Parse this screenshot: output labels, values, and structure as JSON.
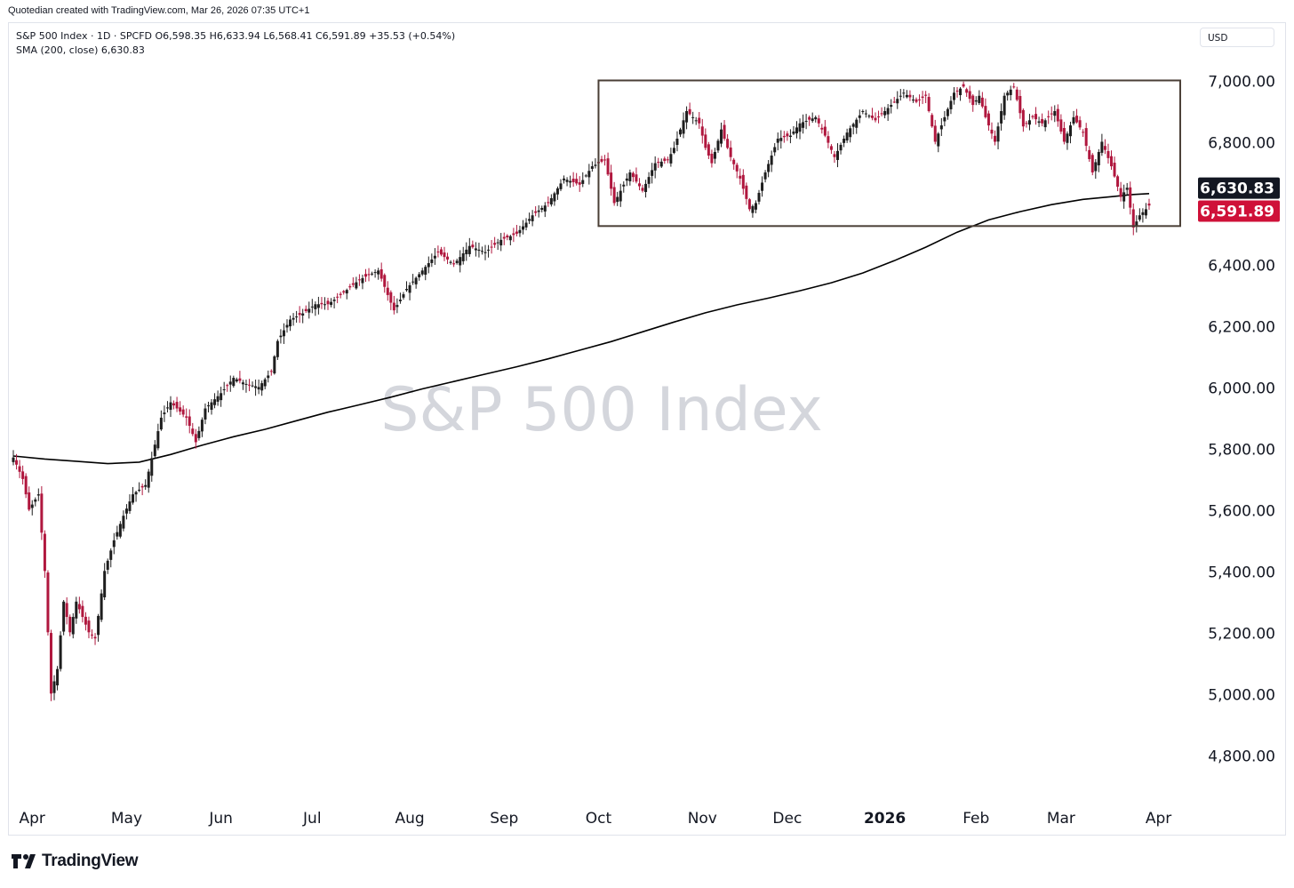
{
  "header": {
    "attribution": "Quotedian created with TradingView.com, Mar 26, 2026 07:35 UTC+1"
  },
  "legend": {
    "symbol_line": "S&P 500 Index · 1D · SPCFD  O6,598.35  H6,633.94  L6,568.41  C6,591.89  +35.53 (+0.54%)",
    "sma_line": "SMA (200, close)  6,630.83"
  },
  "currency_selector": "USD",
  "watermark": "S&P 500 Index",
  "brand": "TradingView",
  "colors": {
    "up": "#1e1e1e",
    "down": "#b0173e",
    "sma": "#000000",
    "box": "#4a3f36",
    "price_label": "#cf1138",
    "sma_label": "#131722"
  },
  "chart_data": {
    "type": "candlestick",
    "title": "S&P 500 Index",
    "timeframe": "1D",
    "currency": "USD",
    "ylim": [
      4650,
      7100
    ],
    "yticks": [
      4800,
      5000,
      5200,
      5400,
      5600,
      5800,
      6000,
      6200,
      6400,
      6800,
      7000
    ],
    "ytick_labels": [
      "4,800.00",
      "5,000.00",
      "5,200.00",
      "5,400.00",
      "5,600.00",
      "5,800.00",
      "6,000.00",
      "6,200.00",
      "6,400.00",
      "6,800.00",
      "7,000.00"
    ],
    "x_months": [
      {
        "label": "Apr",
        "day": 6
      },
      {
        "label": "May",
        "day": 36
      },
      {
        "label": "Jun",
        "day": 66
      },
      {
        "label": "Jul",
        "day": 95
      },
      {
        "label": "Aug",
        "day": 126
      },
      {
        "label": "Sep",
        "day": 156
      },
      {
        "label": "Oct",
        "day": 186
      },
      {
        "label": "Nov",
        "day": 219
      },
      {
        "label": "Dec",
        "day": 246
      },
      {
        "label": "2026",
        "day": 277
      },
      {
        "label": "Feb",
        "day": 306
      },
      {
        "label": "Mar",
        "day": 333
      },
      {
        "label": "Apr",
        "day": 364
      }
    ],
    "anchors": [
      [
        0,
        5770
      ],
      [
        3,
        5700
      ],
      [
        5,
        5600
      ],
      [
        8,
        5650
      ],
      [
        10,
        5400
      ],
      [
        12,
        5000
      ],
      [
        14,
        5080
      ],
      [
        16,
        5300
      ],
      [
        18,
        5200
      ],
      [
        20,
        5300
      ],
      [
        24,
        5200
      ],
      [
        26,
        5180
      ],
      [
        29,
        5400
      ],
      [
        32,
        5500
      ],
      [
        35,
        5580
      ],
      [
        38,
        5650
      ],
      [
        42,
        5680
      ],
      [
        47,
        5900
      ],
      [
        50,
        5950
      ],
      [
        55,
        5900
      ],
      [
        58,
        5820
      ],
      [
        61,
        5930
      ],
      [
        66,
        5980
      ],
      [
        70,
        6030
      ],
      [
        74,
        6010
      ],
      [
        78,
        6000
      ],
      [
        82,
        6050
      ],
      [
        84,
        6150
      ],
      [
        88,
        6220
      ],
      [
        92,
        6240
      ],
      [
        96,
        6270
      ],
      [
        100,
        6270
      ],
      [
        104,
        6300
      ],
      [
        110,
        6350
      ],
      [
        116,
        6380
      ],
      [
        119,
        6300
      ],
      [
        121,
        6250
      ],
      [
        125,
        6320
      ],
      [
        130,
        6380
      ],
      [
        135,
        6440
      ],
      [
        140,
        6400
      ],
      [
        145,
        6460
      ],
      [
        150,
        6440
      ],
      [
        155,
        6480
      ],
      [
        160,
        6500
      ],
      [
        165,
        6560
      ],
      [
        170,
        6600
      ],
      [
        175,
        6680
      ],
      [
        180,
        6660
      ],
      [
        184,
        6720
      ],
      [
        188,
        6740
      ],
      [
        191,
        6600
      ],
      [
        196,
        6700
      ],
      [
        200,
        6640
      ],
      [
        204,
        6730
      ],
      [
        208,
        6740
      ],
      [
        210,
        6780
      ],
      [
        214,
        6900
      ],
      [
        218,
        6860
      ],
      [
        220,
        6780
      ],
      [
        222,
        6730
      ],
      [
        225,
        6840
      ],
      [
        228,
        6750
      ],
      [
        231,
        6680
      ],
      [
        234,
        6580
      ],
      [
        236,
        6600
      ],
      [
        239,
        6700
      ],
      [
        243,
        6810
      ],
      [
        247,
        6820
      ],
      [
        250,
        6860
      ],
      [
        255,
        6880
      ],
      [
        258,
        6820
      ],
      [
        261,
        6750
      ],
      [
        265,
        6830
      ],
      [
        270,
        6900
      ],
      [
        274,
        6870
      ],
      [
        279,
        6920
      ],
      [
        283,
        6960
      ],
      [
        287,
        6930
      ],
      [
        290,
        6950
      ],
      [
        293,
        6800
      ],
      [
        296,
        6880
      ],
      [
        299,
        6960
      ],
      [
        302,
        6980
      ],
      [
        305,
        6920
      ],
      [
        307,
        6950
      ],
      [
        309,
        6880
      ],
      [
        312,
        6800
      ],
      [
        315,
        6950
      ],
      [
        318,
        6980
      ],
      [
        321,
        6850
      ],
      [
        324,
        6880
      ],
      [
        327,
        6860
      ],
      [
        331,
        6900
      ],
      [
        334,
        6800
      ],
      [
        337,
        6880
      ],
      [
        340,
        6830
      ],
      [
        343,
        6700
      ],
      [
        346,
        6800
      ],
      [
        349,
        6720
      ],
      [
        352,
        6620
      ],
      [
        354,
        6650
      ],
      [
        356,
        6520
      ],
      [
        358,
        6560
      ],
      [
        360,
        6580
      ],
      [
        361,
        6591.89
      ]
    ],
    "sma200": [
      [
        0,
        5775
      ],
      [
        10,
        5765
      ],
      [
        20,
        5758
      ],
      [
        30,
        5750
      ],
      [
        40,
        5755
      ],
      [
        50,
        5780
      ],
      [
        60,
        5810
      ],
      [
        70,
        5838
      ],
      [
        80,
        5862
      ],
      [
        90,
        5890
      ],
      [
        100,
        5918
      ],
      [
        110,
        5942
      ],
      [
        120,
        5967
      ],
      [
        130,
        5994
      ],
      [
        140,
        6018
      ],
      [
        150,
        6042
      ],
      [
        160,
        6066
      ],
      [
        170,
        6092
      ],
      [
        180,
        6120
      ],
      [
        190,
        6148
      ],
      [
        200,
        6180
      ],
      [
        210,
        6212
      ],
      [
        220,
        6242
      ],
      [
        230,
        6268
      ],
      [
        240,
        6290
      ],
      [
        250,
        6314
      ],
      [
        260,
        6340
      ],
      [
        270,
        6372
      ],
      [
        280,
        6412
      ],
      [
        290,
        6456
      ],
      [
        300,
        6505
      ],
      [
        310,
        6545
      ],
      [
        320,
        6572
      ],
      [
        330,
        6595
      ],
      [
        340,
        6612
      ],
      [
        350,
        6622
      ],
      [
        356,
        6628
      ],
      [
        361,
        6630.83
      ]
    ],
    "series": [
      {
        "name": "S&P 500 Index · 1D · SPCFD",
        "last": 6591.89
      },
      {
        "name": "SMA (200, close)",
        "last": 6630.83
      }
    ],
    "last_price": 6591.89,
    "last_price_label": "6,591.89",
    "sma_last": 6630.83,
    "sma_last_label": "6,630.83",
    "range_box": {
      "start_day": 186,
      "end_day": 361,
      "low": 6525,
      "high": 7000
    }
  }
}
